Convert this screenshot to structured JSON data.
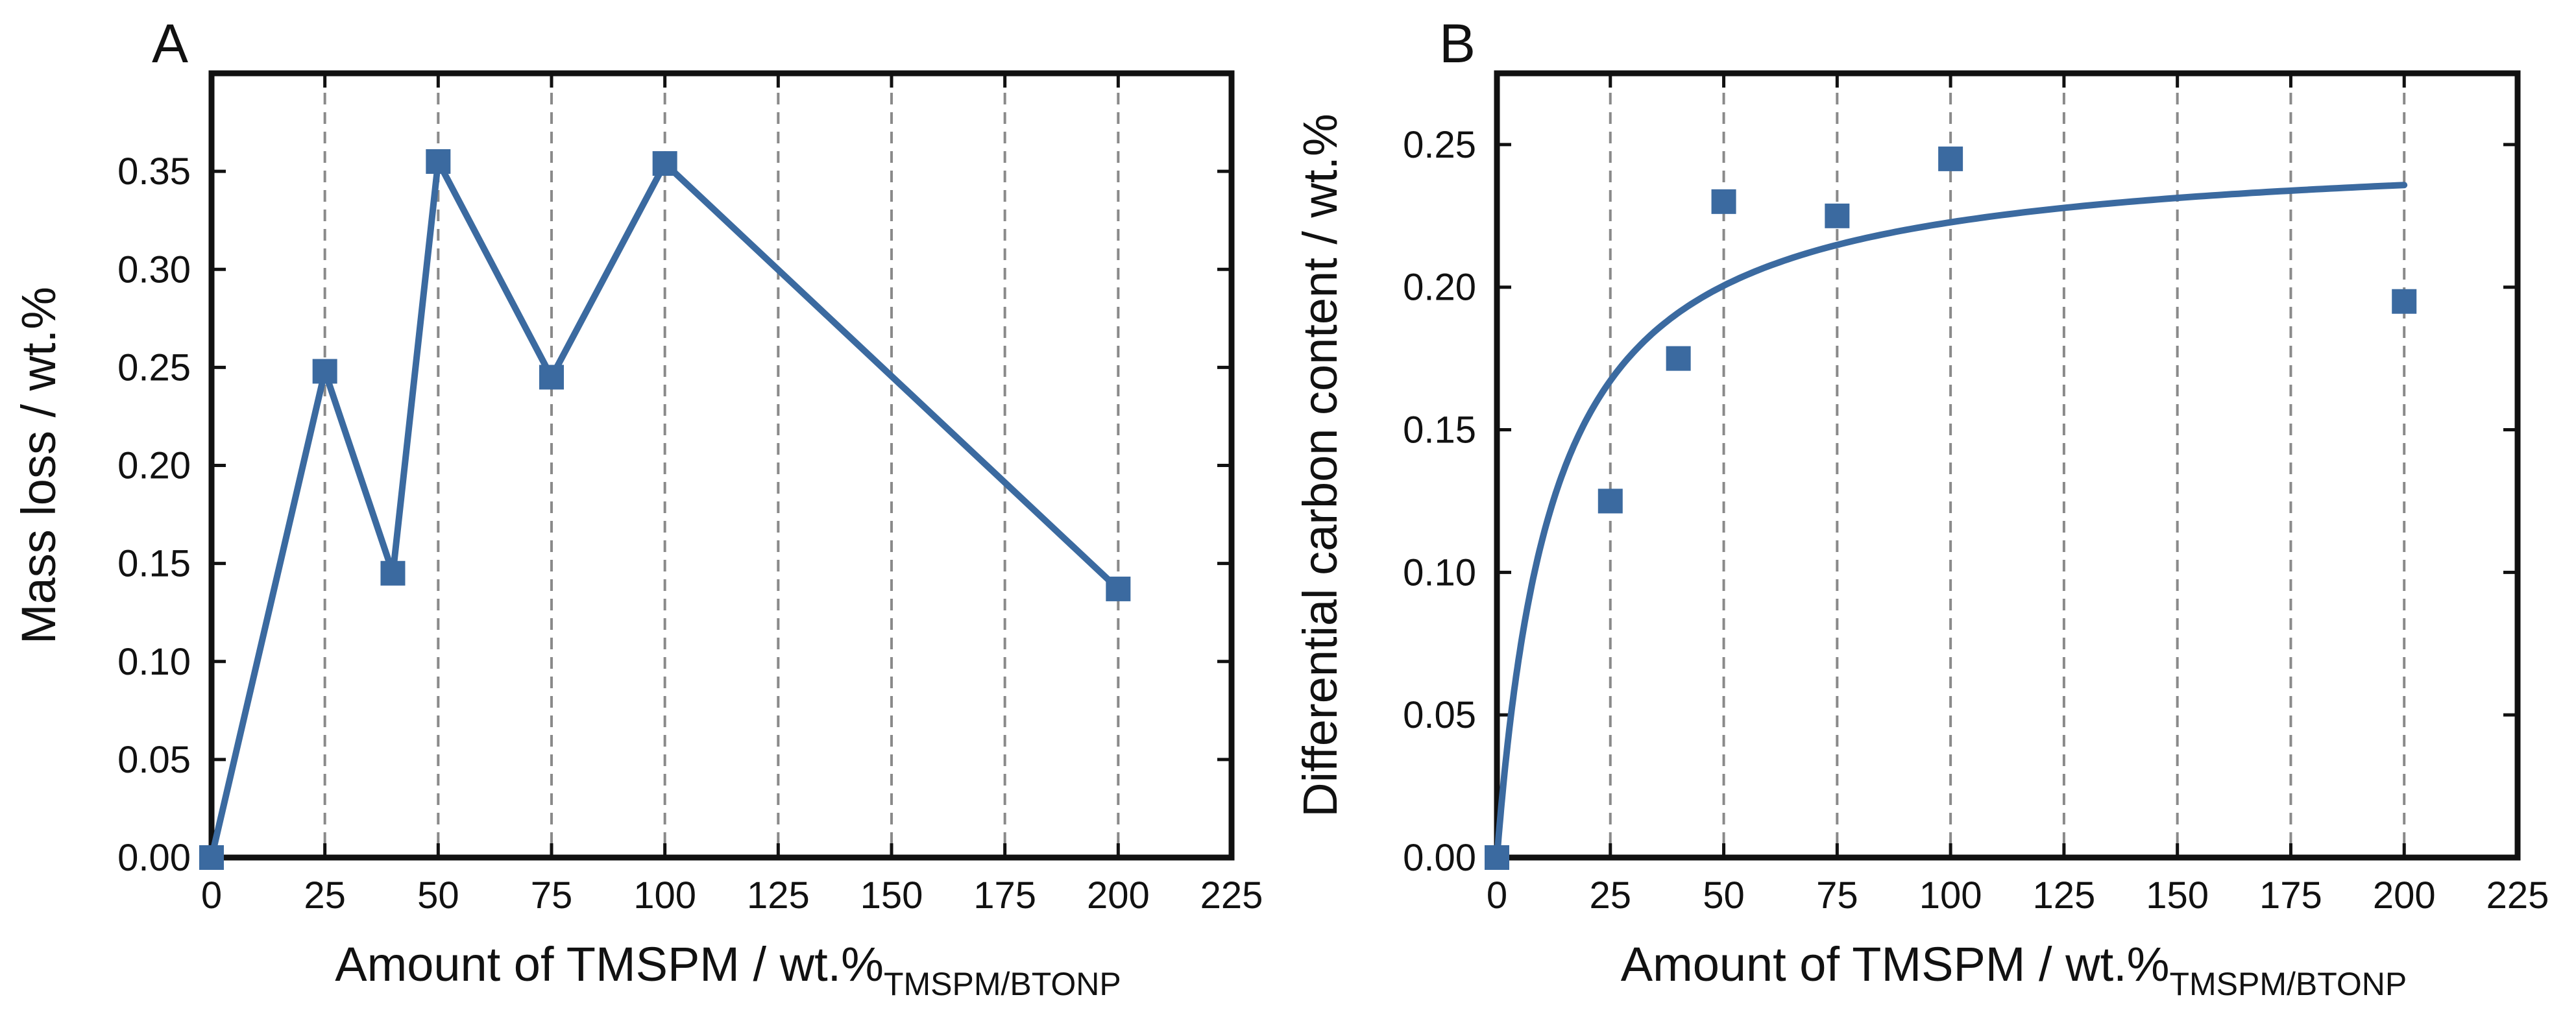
{
  "chart_data": [
    {
      "type": "line",
      "panel_label": "A",
      "xlabel": "Amount of TMSPM / wt.%",
      "xlabel_subscript": "TMSPM/BTONP",
      "ylabel": "Mass loss / wt.%",
      "xlim": [
        0,
        225
      ],
      "ylim": [
        0.0,
        0.4
      ],
      "xticks": [
        0,
        25,
        50,
        75,
        100,
        125,
        150,
        175,
        200,
        225
      ],
      "yticks": [
        0.0,
        0.05,
        0.1,
        0.15,
        0.2,
        0.25,
        0.3,
        0.35
      ],
      "xtick_labels": [
        "0",
        "25",
        "50",
        "75",
        "100",
        "125",
        "150",
        "175",
        "200",
        "225"
      ],
      "ytick_labels": [
        "0.00",
        "0.05",
        "0.10",
        "0.15",
        "0.20",
        "0.25",
        "0.30",
        "0.35"
      ],
      "grid_x": [
        25,
        50,
        75,
        100,
        125,
        150,
        175,
        200
      ],
      "grid": "vertical dashed",
      "color": "#3b6aa0",
      "series": [
        {
          "name": "Mass loss",
          "x": [
            0,
            25,
            40,
            50,
            75,
            100,
            200
          ],
          "values": [
            0.0,
            0.248,
            0.145,
            0.355,
            0.245,
            0.354,
            0.137
          ]
        }
      ]
    },
    {
      "type": "scatter",
      "panel_label": "B",
      "xlabel": "Amount of TMSPM / wt.%",
      "xlabel_subscript": "TMSPM/BTONP",
      "ylabel": "Differential carbon content / wt.%",
      "xlim": [
        0,
        225
      ],
      "ylim": [
        0.0,
        0.275
      ],
      "xticks": [
        0,
        25,
        50,
        75,
        100,
        125,
        150,
        175,
        200,
        225
      ],
      "yticks": [
        0.0,
        0.05,
        0.1,
        0.15,
        0.2,
        0.25
      ],
      "xtick_labels": [
        "0",
        "25",
        "50",
        "75",
        "100",
        "125",
        "150",
        "175",
        "200",
        "225"
      ],
      "ytick_labels": [
        "0.00",
        "0.05",
        "0.10",
        "0.15",
        "0.20",
        "0.25"
      ],
      "grid_x": [
        25,
        50,
        75,
        100,
        125,
        150,
        175,
        200
      ],
      "grid": "vertical dashed",
      "color": "#3b6aa0",
      "series": [
        {
          "name": "Differential carbon content",
          "x": [
            0,
            25,
            40,
            50,
            75,
            100,
            200
          ],
          "values": [
            0.0,
            0.125,
            0.175,
            0.23,
            0.225,
            0.245,
            0.195
          ]
        }
      ],
      "fit": {
        "type": "langmuir",
        "qmax": 0.2505,
        "K": 0.0803,
        "x_range": [
          0,
          200
        ]
      }
    }
  ]
}
